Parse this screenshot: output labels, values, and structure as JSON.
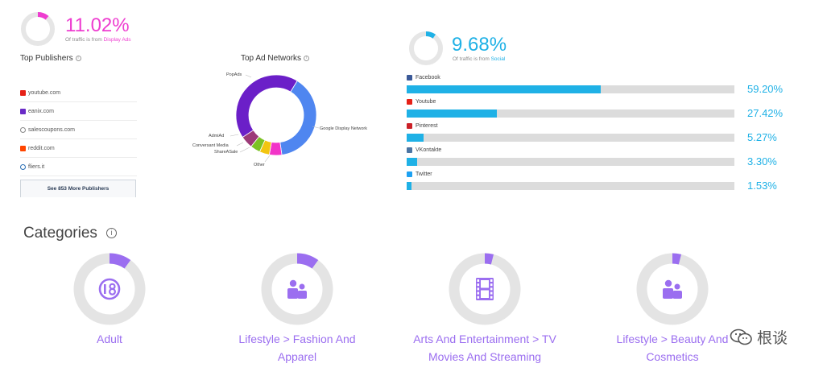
{
  "display_ads": {
    "percent_text": "11.02%",
    "percent_value": 11.02,
    "subtitle_prefix": "Of traffic is from ",
    "subtitle_source": "Display Ads",
    "accent": "#ee3dd0"
  },
  "top_publishers": {
    "title": "Top Publishers",
    "items": [
      {
        "label": "youtube.com",
        "icon": "youtube-icon",
        "color": "#e62117"
      },
      {
        "label": "eanix.com",
        "icon": "check-box-icon",
        "color": "#6a2bc7"
      },
      {
        "label": "salescoupons.com",
        "icon": "globe-icon",
        "color": "#888888"
      },
      {
        "label": "reddit.com",
        "icon": "reddit-icon",
        "color": "#ff4500"
      },
      {
        "label": "fliers.it",
        "icon": "globe-icon",
        "color": "#2a6fb5"
      }
    ],
    "more_button": "See 853 More Publishers"
  },
  "top_ad_networks": {
    "title": "Top Ad Networks",
    "segments": [
      {
        "name": "Google Display Network",
        "value": 39,
        "color": "#4f86f0"
      },
      {
        "name": "Other",
        "value": 5,
        "color": "#f234c8"
      },
      {
        "name": "ShareASale",
        "value": 4,
        "color": "#f2c511"
      },
      {
        "name": "Conversant Media",
        "value": 4,
        "color": "#7cc224"
      },
      {
        "name": "AdmiAd",
        "value": 5,
        "color": "#9c3a78"
      },
      {
        "name": "PopAds",
        "value": 43,
        "color": "#6b1fc8"
      }
    ]
  },
  "social": {
    "percent_text": "9.68%",
    "percent_value": 9.68,
    "subtitle_prefix": "Of traffic is from ",
    "subtitle_source": "Social",
    "accent": "#1fb1e6",
    "items": [
      {
        "name": "Facebook",
        "percent_text": "59.20%",
        "value": 59.2,
        "icon": "facebook-icon",
        "color": "#3b5998"
      },
      {
        "name": "Youtube",
        "percent_text": "27.42%",
        "value": 27.42,
        "icon": "youtube-icon",
        "color": "#e62117"
      },
      {
        "name": "Pinterest",
        "percent_text": "5.27%",
        "value": 5.27,
        "icon": "pinterest-icon",
        "color": "#cb2027"
      },
      {
        "name": "VKontakte",
        "percent_text": "3.30%",
        "value": 3.3,
        "icon": "vkontakte-icon",
        "color": "#4c75a3"
      },
      {
        "name": "Twitter",
        "percent_text": "1.53%",
        "value": 1.53,
        "icon": "twitter-icon",
        "color": "#1da1f2"
      }
    ]
  },
  "categories": {
    "title": "Categories",
    "accent": "#9b6ef0",
    "items": [
      {
        "label_line1": "Adult",
        "label_line2": "",
        "icon": "adult-18-icon",
        "value": 0.1
      },
      {
        "label_line1": "Lifestyle > Fashion And",
        "label_line2": "Apparel",
        "icon": "people-icon",
        "value": 0.1
      },
      {
        "label_line1": "Arts And Entertainment > TV",
        "label_line2": "Movies And Streaming",
        "icon": "film-icon",
        "value": 0.04
      },
      {
        "label_line1": "Lifestyle > Beauty And",
        "label_line2": "Cosmetics",
        "icon": "people-icon",
        "value": 0.04
      }
    ]
  },
  "watermark": {
    "text": "根谈",
    "icon": "wechat-icon"
  }
}
